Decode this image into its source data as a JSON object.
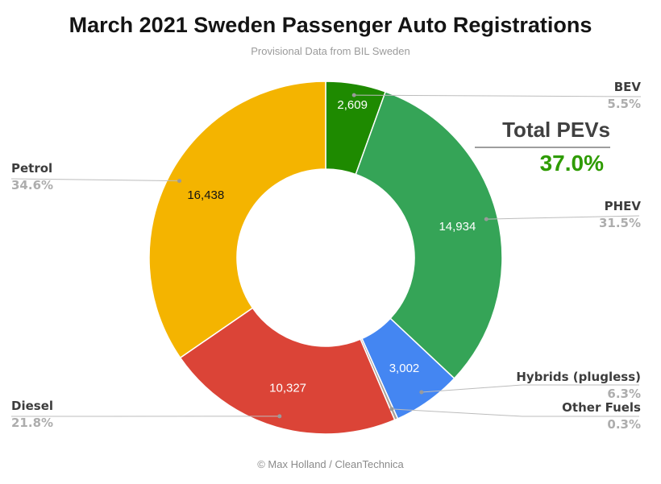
{
  "header": {
    "title": "March 2021 Sweden Passenger Auto Registrations",
    "subtitle": "Provisional Data from BIL Sweden"
  },
  "footer": {
    "credit": "© Max Holland / CleanTechnica"
  },
  "total_pevs": {
    "label": "Total PEVs",
    "value": "37.0%",
    "value_color": "#2e9b00"
  },
  "chart_data": {
    "type": "pie",
    "donut": true,
    "hole_ratio": 0.5,
    "start_angle_deg": 0,
    "direction": "clockwise",
    "title": "March 2021 Sweden Passenger Auto Registrations",
    "legend_position": "outside-callouts",
    "slices": [
      {
        "label": "BEV",
        "pct": 5.5,
        "pct_label": "5.5%",
        "value": 2609,
        "value_label": "2,609",
        "color": "#1e8a00",
        "text_color": "#ffffff"
      },
      {
        "label": "PHEV",
        "pct": 31.5,
        "pct_label": "31.5%",
        "value": 14934,
        "value_label": "14,934",
        "color": "#35a457",
        "text_color": "#ffffff"
      },
      {
        "label": "Hybrids (plugless)",
        "pct": 6.3,
        "pct_label": "6.3%",
        "value": 3002,
        "value_label": "3,002",
        "color": "#4486f2",
        "text_color": "#ffffff"
      },
      {
        "label": "Other Fuels",
        "pct": 0.3,
        "pct_label": "0.3%",
        "value": null,
        "value_label": null,
        "color": "#aaa098",
        "text_color": "#ffffff"
      },
      {
        "label": "Diesel",
        "pct": 21.8,
        "pct_label": "21.8%",
        "value": 10327,
        "value_label": "10,327",
        "color": "#db4437",
        "text_color": "#ffffff"
      },
      {
        "label": "Petrol",
        "pct": 34.6,
        "pct_label": "34.6%",
        "value": 16438,
        "value_label": "16,438",
        "color": "#f4b400",
        "text_color": "#141414"
      }
    ]
  }
}
